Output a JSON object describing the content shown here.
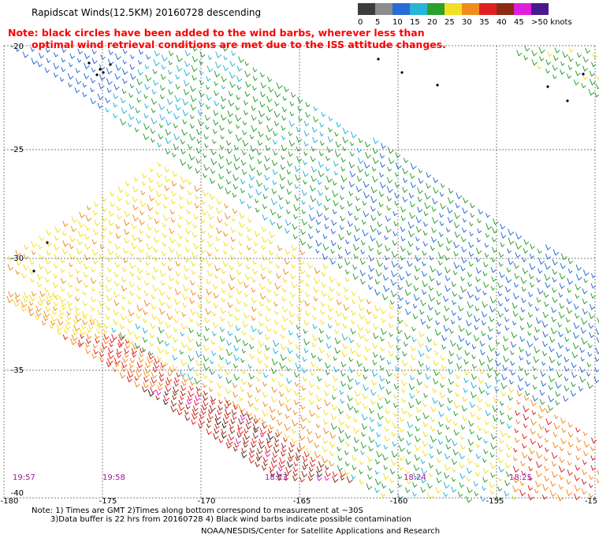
{
  "title": "Rapidscat Winds(12.5KM) 20160728 descending",
  "note_line1": "Note: black circles have been added to the wind barbs, wherever less than",
  "note_line2": "optimal wind retrieval conditions are met due to the ISS attitude changes.",
  "legend": {
    "items": [
      {
        "label": "0",
        "color": "#3c3c3c"
      },
      {
        "label": "5",
        "color": "#8c8c8c"
      },
      {
        "label": "10",
        "color": "#2a6cd6"
      },
      {
        "label": "15",
        "color": "#28b4d6"
      },
      {
        "label": "20",
        "color": "#2ca02c"
      },
      {
        "label": "25",
        "color": "#f2e024"
      },
      {
        "label": "30",
        "color": "#f08c1e"
      },
      {
        "label": "35",
        "color": "#e02020"
      },
      {
        "label": "40",
        "color": "#8c2a14"
      },
      {
        "label": "45",
        "color": "#e01ee0"
      },
      {
        "label": ">50 knots",
        "color": "#4a1a8c"
      }
    ]
  },
  "map": {
    "lat_labels": [
      "-20",
      "-25",
      "-30",
      "-35",
      "-40"
    ],
    "lon_labels": [
      "-180",
      "-175",
      "-170",
      "-165",
      "-160",
      "-155",
      "-15"
    ],
    "time_stamps": [
      "19:57",
      "19:58",
      "18:23",
      "18:24",
      "18:25"
    ]
  },
  "footer": {
    "line1": "Note: 1) Times are GMT 2)Times along bottom correspond to measurement at ~30S",
    "line2": "3)Data buffer is 22 hrs from 20160728 4) Black wind barbs indicate possible contamination",
    "credit": "NOAA/NESDIS/Center for Satellite Applications and Research"
  }
}
